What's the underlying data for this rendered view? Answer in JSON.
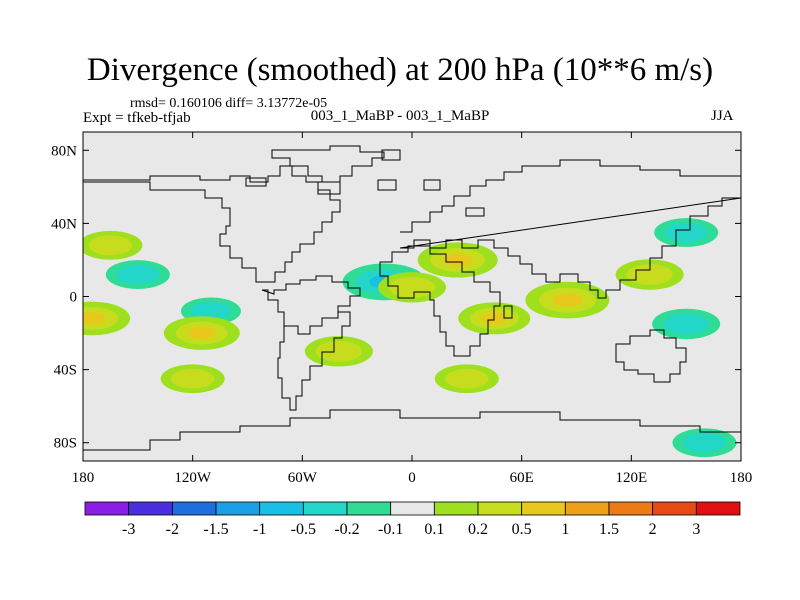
{
  "title": "Divergence (smoothed) at 200 hPa (10**6 m/s)",
  "stats": "rmsd= 0.160106 diff= 3.13772e-05",
  "expt": "Expt = tfkeb-tfjab",
  "center_label": "003_1_MaBP - 003_1_MaBP",
  "season": "JJA",
  "chart_data": {
    "type": "heatmap",
    "title": "Divergence (smoothed) at 200 hPa (10**6 m/s)",
    "xlabel": "",
    "ylabel": "",
    "xlim": [
      -180,
      180
    ],
    "ylim": [
      -90,
      90
    ],
    "x_ticks": [
      {
        "value": -180,
        "label": "180"
      },
      {
        "value": -120,
        "label": "120W"
      },
      {
        "value": -60,
        "label": "60W"
      },
      {
        "value": 0,
        "label": "0"
      },
      {
        "value": 60,
        "label": "60E"
      },
      {
        "value": 120,
        "label": "120E"
      },
      {
        "value": 180,
        "label": "180"
      }
    ],
    "y_ticks": [
      {
        "value": 80,
        "label": "80N"
      },
      {
        "value": 40,
        "label": "40N"
      },
      {
        "value": 0,
        "label": "0"
      },
      {
        "value": -40,
        "label": "40S"
      },
      {
        "value": -80,
        "label": "80S"
      }
    ],
    "colorbar": {
      "levels": [
        "-3",
        "-2",
        "-1.5",
        "-1",
        "-0.5",
        "-0.2",
        "-0.1",
        "0.1",
        "0.2",
        "0.5",
        "1",
        "1.5",
        "2",
        "3"
      ],
      "colors": [
        "#8b1fe8",
        "#4a2ee0",
        "#1d6fe0",
        "#1aa0e6",
        "#18c0e6",
        "#22d6c8",
        "#2edc96",
        "#e8e8e8",
        "#9ee01e",
        "#c8dc1e",
        "#e8c81c",
        "#eea018",
        "#ee7a16",
        "#e84a14",
        "#e01010"
      ]
    },
    "anomalies": [
      {
        "lon": -165,
        "lat": 28,
        "value": 0.3
      },
      {
        "lon": -150,
        "lat": 12,
        "value": -0.3
      },
      {
        "lon": -110,
        "lat": -8,
        "value": -0.2
      },
      {
        "lon": -15,
        "lat": 8,
        "value": -0.8
      },
      {
        "lon": 0,
        "lat": 5,
        "value": 0.4
      },
      {
        "lon": 25,
        "lat": 20,
        "value": 0.7
      },
      {
        "lon": 45,
        "lat": -12,
        "value": 0.5
      },
      {
        "lon": 85,
        "lat": -2,
        "value": 0.8
      },
      {
        "lon": 130,
        "lat": 12,
        "value": 0.4
      },
      {
        "lon": 150,
        "lat": 35,
        "value": -0.3
      },
      {
        "lon": -175,
        "lat": -12,
        "value": 0.6
      },
      {
        "lon": -115,
        "lat": -20,
        "value": 0.6
      },
      {
        "lon": -120,
        "lat": -45,
        "value": 0.3
      },
      {
        "lon": -40,
        "lat": -30,
        "value": 0.4
      },
      {
        "lon": 30,
        "lat": -45,
        "value": 0.3
      },
      {
        "lon": 150,
        "lat": -15,
        "value": -0.4
      },
      {
        "lon": 160,
        "lat": -80,
        "value": -0.3
      }
    ]
  }
}
